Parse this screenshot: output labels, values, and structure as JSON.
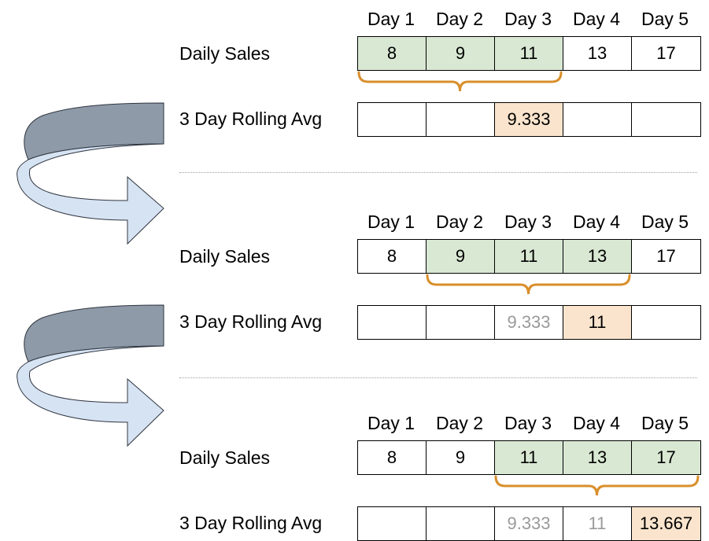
{
  "colors": {
    "window": "#d9e8d3",
    "result": "#fbe4cd",
    "brace": "#d98f2b",
    "faded_text": "#9a9a9a",
    "arrow_back": "#8e9aa8",
    "arrow_front": "#d6e3f2"
  },
  "days": [
    "Day 1",
    "Day 2",
    "Day 3",
    "Day 4",
    "Day 5"
  ],
  "row_labels": {
    "sales": "Daily Sales",
    "avg": "3 Day Rolling Avg"
  },
  "panels": [
    {
      "sales": [
        "8",
        "9",
        "11",
        "13",
        "17"
      ],
      "window": [
        0,
        1,
        2
      ],
      "avg": [
        "",
        "",
        "9.333",
        "",
        ""
      ],
      "current_index": 2
    },
    {
      "sales": [
        "8",
        "9",
        "11",
        "13",
        "17"
      ],
      "window": [
        1,
        2,
        3
      ],
      "avg": [
        "",
        "",
        "9.333",
        "11",
        ""
      ],
      "current_index": 3
    },
    {
      "sales": [
        "8",
        "9",
        "11",
        "13",
        "17"
      ],
      "window": [
        2,
        3,
        4
      ],
      "avg": [
        "",
        "",
        "9.333",
        "11",
        "13.667"
      ],
      "current_index": 4
    }
  ]
}
